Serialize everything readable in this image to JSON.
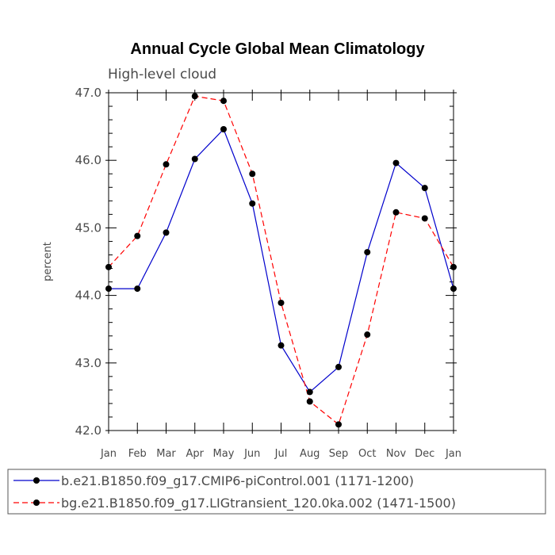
{
  "chart_data": {
    "type": "line",
    "title": "Annual Cycle Global Mean Climatology",
    "subtitle": "High-level cloud",
    "xlabel": "",
    "ylabel": "percent",
    "categories": [
      "Jan",
      "Feb",
      "Mar",
      "Apr",
      "May",
      "Jun",
      "Jul",
      "Aug",
      "Sep",
      "Oct",
      "Nov",
      "Dec",
      "Jan"
    ],
    "ylim": [
      42.0,
      47.0
    ],
    "yticks": [
      "42.0",
      "43.0",
      "44.0",
      "45.0",
      "46.0",
      "47.0"
    ],
    "grid": false,
    "legend": "bottom",
    "series": [
      {
        "name": "b.e21.B1850.f09_g17.CMIP6-piControl.001 (1171-1200)",
        "color": "#0000cc",
        "dash": "solid",
        "values": [
          44.1,
          44.1,
          44.93,
          46.02,
          46.46,
          45.36,
          43.26,
          42.57,
          42.94,
          44.64,
          45.96,
          45.59,
          44.1
        ]
      },
      {
        "name": "bg.e21.B1850.f09_g17.LIGtransient_120.0ka.002 (1471-1500)",
        "color": "#ff0000",
        "dash": "dashed",
        "values": [
          44.42,
          44.88,
          45.94,
          46.95,
          46.88,
          45.8,
          43.89,
          42.43,
          42.09,
          43.42,
          45.23,
          45.14,
          44.42
        ]
      }
    ]
  }
}
